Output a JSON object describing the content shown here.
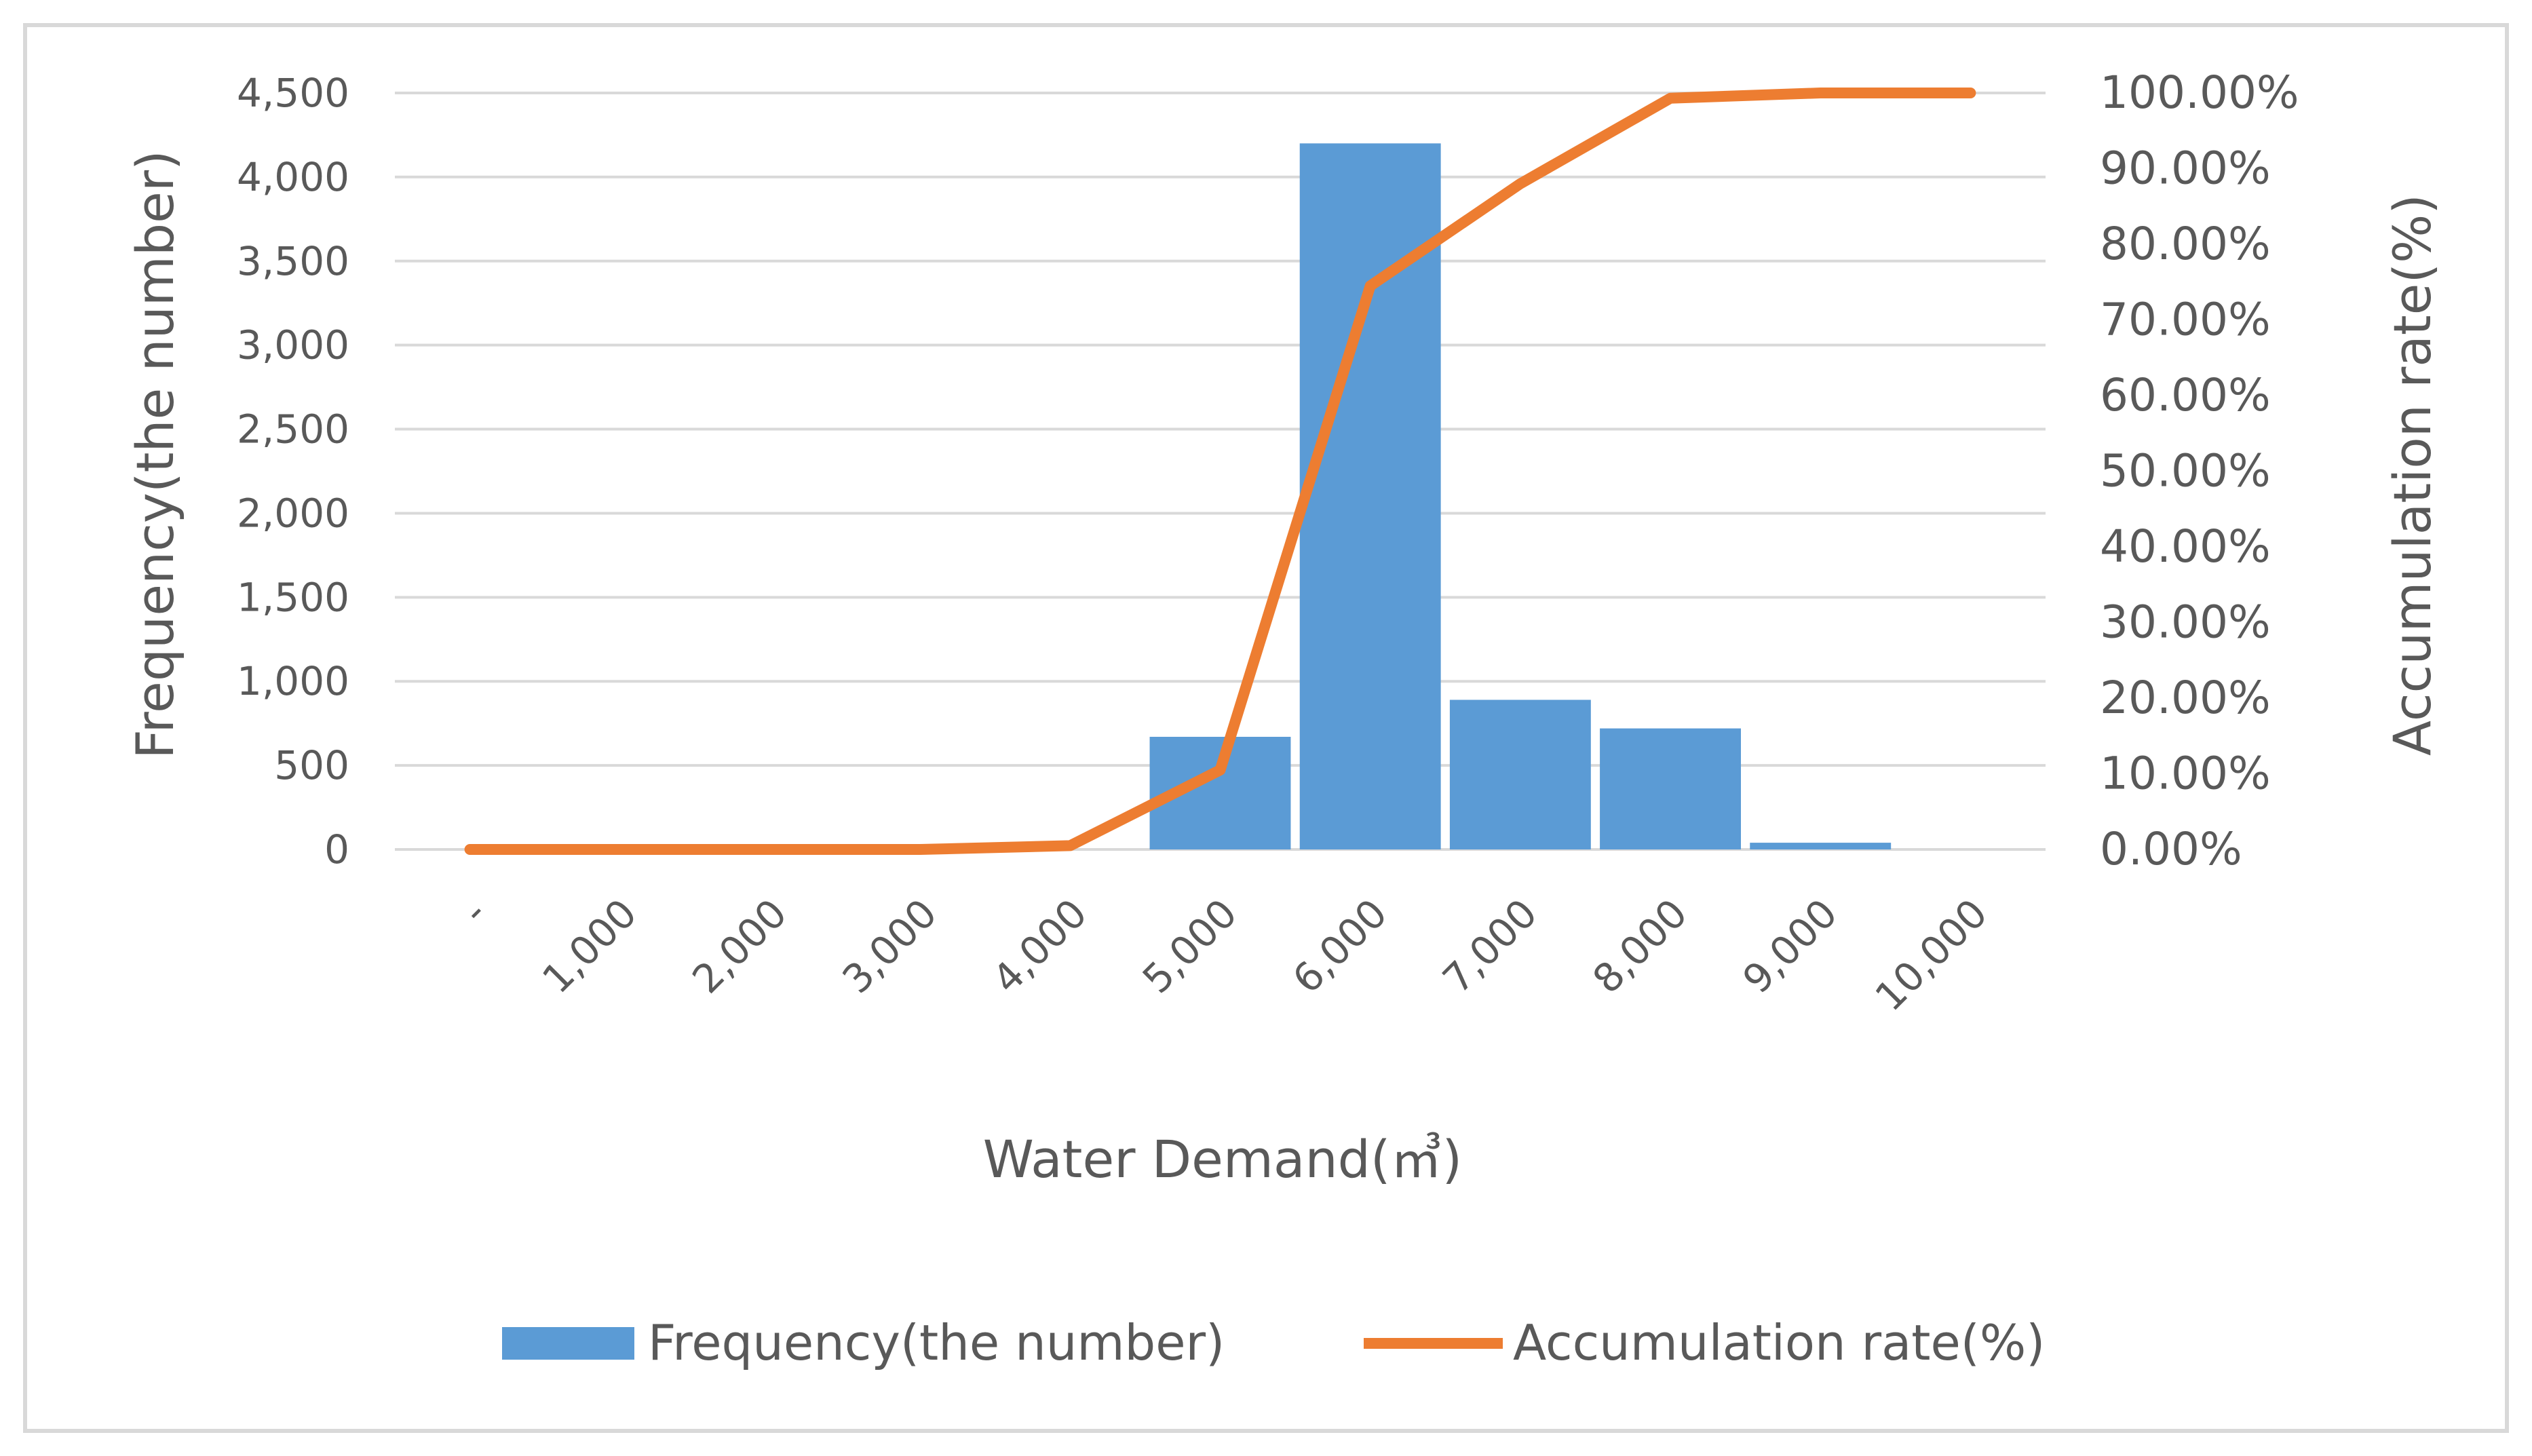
{
  "chart_data": {
    "type": "bar+line",
    "title": "",
    "categories": [
      "-",
      "1,000",
      "2,000",
      "3,000",
      "4,000",
      "5,000",
      "6,000",
      "7,000",
      "8,000",
      "9,000",
      "10,000"
    ],
    "bar_series": {
      "name": "Frequency(the number)",
      "color": "#5b9bd5",
      "values": [
        0,
        0,
        0,
        0,
        0,
        670,
        4200,
        890,
        720,
        40,
        0
      ]
    },
    "line_series": {
      "name": "Accumulation rate(%)",
      "color": "#ed7d31",
      "values": [
        0,
        0,
        0,
        0,
        0.5,
        10.5,
        74.5,
        88.0,
        99.3,
        100.0,
        100.0
      ]
    },
    "y_left": {
      "label": "Frequency(the number)",
      "ylim": [
        0,
        4500
      ],
      "ticks": [
        0,
        500,
        1000,
        1500,
        2000,
        2500,
        3000,
        3500,
        4000,
        4500
      ],
      "tick_labels": [
        "0",
        "500",
        "1,000",
        "1,500",
        "2,000",
        "2,500",
        "3,000",
        "3,500",
        "4,000",
        "4,500"
      ]
    },
    "y_right": {
      "label": "Accumulation rate(%)",
      "ylim": [
        0,
        100
      ],
      "ticks": [
        0,
        10,
        20,
        30,
        40,
        50,
        60,
        70,
        80,
        90,
        100
      ],
      "tick_labels": [
        "0.00%",
        "10.00%",
        "20.00%",
        "30.00%",
        "40.00%",
        "50.00%",
        "60.00%",
        "70.00%",
        "80.00%",
        "90.00%",
        "100.00%"
      ]
    },
    "xlabel": "Water Demand(㎥)",
    "grid": true,
    "legend_position": "bottom"
  },
  "colors": {
    "gridline": "#d9d9d9",
    "text": "#595959",
    "frame": "#d9d9d9"
  }
}
